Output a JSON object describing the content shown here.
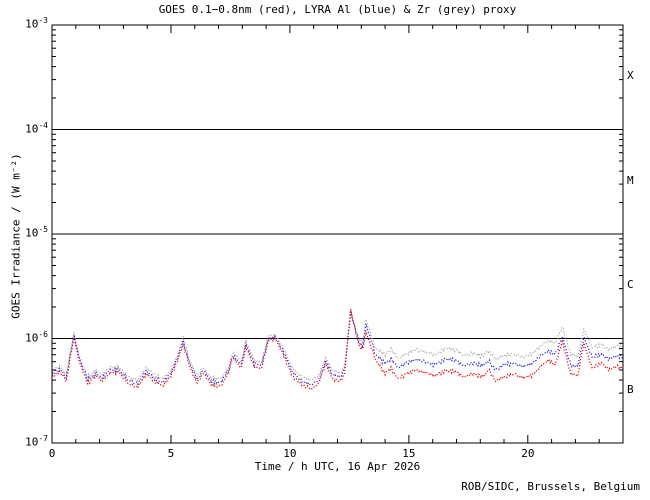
{
  "title": "GOES 0.1−0.8nm (red), LYRA Al (blue) & Zr (grey) proxy",
  "credit": "ROB/SIDC, Brussels, Belgium",
  "colors": {
    "goes_red": "#ee0000",
    "lyra_al_blue": "#2222dd",
    "lyra_zr_grey": "#a8a8a8",
    "axis": "#000000",
    "background": "#ffffff"
  },
  "chart_data": {
    "type": "line",
    "title": "GOES 0.1−0.8nm (red), LYRA Al (blue) & Zr (grey) proxy",
    "xlabel": "Time / h UTC, 16 Apr 2026",
    "ylabel": "GOES Irradiance / (W m⁻²)",
    "xlim": [
      0,
      24
    ],
    "ylog": true,
    "ylim": [
      1e-07,
      0.001
    ],
    "x_major_ticks": [
      0,
      5,
      10,
      15,
      20
    ],
    "x_minor_step": 1,
    "y_tick_exponents": [
      -3,
      -4,
      -5,
      -6,
      -7
    ],
    "hlines": [
      0.0001,
      1e-05,
      1e-06
    ],
    "flare_class_labels": [
      {
        "label": "X",
        "decade_range": [
          -4,
          -3
        ]
      },
      {
        "label": "M",
        "decade_range": [
          -5,
          -4
        ]
      },
      {
        "label": "C",
        "decade_range": [
          -6,
          -5
        ]
      },
      {
        "label": "B",
        "decade_range": [
          -7,
          -6
        ]
      }
    ],
    "grid": false,
    "legend_position": "in-title",
    "line_style": "dotted",
    "x": [
      0.0,
      0.35,
      0.6,
      0.92,
      1.15,
      1.5,
      1.85,
      2.1,
      2.45,
      2.8,
      3.2,
      3.6,
      3.95,
      4.3,
      4.65,
      5.0,
      5.3,
      5.5,
      5.8,
      6.1,
      6.35,
      6.7,
      7.1,
      7.45,
      7.6,
      7.95,
      8.15,
      8.5,
      8.8,
      9.1,
      9.4,
      9.7,
      10.1,
      10.5,
      10.9,
      11.2,
      11.5,
      11.8,
      12.1,
      12.3,
      12.55,
      12.9,
      13.05,
      13.2,
      13.6,
      14.0,
      14.25,
      14.55,
      14.9,
      15.3,
      15.7,
      16.1,
      16.55,
      17.0,
      17.3,
      17.7,
      18.1,
      18.35,
      18.65,
      19.0,
      19.4,
      19.8,
      20.2,
      20.6,
      20.9,
      21.15,
      21.45,
      21.8,
      22.1,
      22.35,
      22.7,
      23.1,
      23.4,
      23.7,
      24.0
    ],
    "series": [
      {
        "name": "LYRA Zr proxy",
        "color": "#a8a8a8",
        "values": [
          4.9e-07,
          5.4e-07,
          4.5e-07,
          1.14e-06,
          6.8e-07,
          4.3e-07,
          5e-07,
          4.5e-07,
          5.3e-07,
          5.4e-07,
          4.3e-07,
          4e-07,
          5.2e-07,
          4.5e-07,
          4.1e-07,
          5e-07,
          7.1e-07,
          1.02e-06,
          6.1e-07,
          4.3e-07,
          5.3e-07,
          4.2e-07,
          4.1e-07,
          5.5e-07,
          7.5e-07,
          6e-07,
          9.5e-07,
          6.2e-07,
          5.9e-07,
          1.06e-06,
          1.08e-06,
          8.2e-07,
          5.2e-07,
          4.3e-07,
          4e-07,
          4.4e-07,
          6.5e-07,
          4.9e-07,
          4.7e-07,
          5.4e-07,
          1.7e-06,
          9.9e-07,
          9.2e-07,
          1.5e-06,
          8e-07,
          7e-07,
          8e-07,
          6.4e-07,
          7.2e-07,
          7.8e-07,
          7.4e-07,
          7e-07,
          8.1e-07,
          7.8e-07,
          6.9e-07,
          7.2e-07,
          6.8e-07,
          7.6e-07,
          6.3e-07,
          6.9e-07,
          7.1e-07,
          6.6e-07,
          7.2e-07,
          8.7e-07,
          9.6e-07,
          8.9e-07,
          1.28e-06,
          7e-07,
          6.7e-07,
          1.23e-06,
          8.2e-07,
          8.6e-07,
          7.8e-07,
          8.4e-07,
          8.2e-07
        ]
      },
      {
        "name": "LYRA Al proxy",
        "color": "#2222dd",
        "values": [
          4.6e-07,
          5.1e-07,
          4.2e-07,
          1.08e-06,
          6.4e-07,
          4e-07,
          4.7e-07,
          4.2e-07,
          5e-07,
          5.1e-07,
          4e-07,
          3.7e-07,
          4.9e-07,
          4.2e-07,
          3.8e-07,
          4.7e-07,
          6.7e-07,
          9.4e-07,
          5.7e-07,
          4e-07,
          5e-07,
          3.9e-07,
          3.8e-07,
          5.2e-07,
          7e-07,
          5.6e-07,
          8.9e-07,
          5.8e-07,
          5.5e-07,
          1.01e-06,
          1.03e-06,
          7.7e-07,
          4.8e-07,
          3.9e-07,
          3.6e-07,
          4e-07,
          6.1e-07,
          4.5e-07,
          4.3e-07,
          5e-07,
          1.82e-06,
          9.2e-07,
          8.4e-07,
          1.35e-06,
          7e-07,
          5.8e-07,
          6.4e-07,
          5.2e-07,
          5.9e-07,
          6.3e-07,
          6e-07,
          5.6e-07,
          6.4e-07,
          6.2e-07,
          5.5e-07,
          5.8e-07,
          5.5e-07,
          6.1e-07,
          5e-07,
          5.6e-07,
          5.8e-07,
          5.4e-07,
          5.8e-07,
          7e-07,
          7.6e-07,
          7e-07,
          1.04e-06,
          5.6e-07,
          5.4e-07,
          1.03e-06,
          6.6e-07,
          7e-07,
          6.3e-07,
          6.8e-07,
          6.6e-07
        ]
      },
      {
        "name": "GOES 0.1-0.8nm",
        "color": "#ee0000",
        "values": [
          4.3e-07,
          4.8e-07,
          3.9e-07,
          1.02e-06,
          6e-07,
          3.7e-07,
          4.4e-07,
          3.9e-07,
          4.7e-07,
          4.8e-07,
          3.7e-07,
          3.4e-07,
          4.6e-07,
          3.9e-07,
          3.5e-07,
          4.4e-07,
          6.3e-07,
          8.8e-07,
          5.3e-07,
          3.7e-07,
          4.7e-07,
          3.6e-07,
          3.5e-07,
          4.9e-07,
          6.6e-07,
          5.2e-07,
          8.3e-07,
          5.4e-07,
          5.1e-07,
          9.6e-07,
          9.9e-07,
          7.2e-07,
          4.4e-07,
          3.6e-07,
          3.3e-07,
          3.7e-07,
          5.7e-07,
          4.1e-07,
          3.9e-07,
          4.6e-07,
          1.88e-06,
          8.6e-07,
          7.8e-07,
          1.15e-06,
          6.2e-07,
          4.6e-07,
          5.2e-07,
          4.1e-07,
          4.6e-07,
          5e-07,
          4.7e-07,
          4.4e-07,
          5e-07,
          4.8e-07,
          4.3e-07,
          4.6e-07,
          4.3e-07,
          5e-07,
          3.9e-07,
          4.3e-07,
          4.6e-07,
          4.2e-07,
          4.5e-07,
          5.6e-07,
          6.2e-07,
          5.6e-07,
          9.3e-07,
          4.6e-07,
          4.4e-07,
          9e-07,
          5.2e-07,
          5.8e-07,
          5e-07,
          5.4e-07,
          5.2e-07
        ]
      }
    ]
  }
}
